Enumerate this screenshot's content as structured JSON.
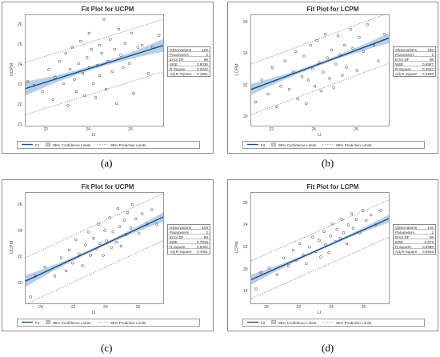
{
  "chart_data": [
    {
      "type": "scatter",
      "panel_caption": "(a)",
      "title": "Fit Plot for UCPM",
      "xlabel": "LI",
      "ylabel": "UCPM",
      "xlim": [
        21,
        27.5
      ],
      "ylim": [
        21,
        26.5
      ],
      "xticks": [
        22,
        24,
        26
      ],
      "yticks": [
        21,
        22,
        23,
        24,
        25,
        26
      ],
      "grid": false,
      "fit": {
        "slope": 0.33,
        "intercept": 15.92
      },
      "ci_half_width": [
        0.35,
        0.1,
        0.32
      ],
      "pi_offset": 1.3,
      "points": [
        [
          21.1,
          23.2
        ],
        [
          21.4,
          23.0
        ],
        [
          21.8,
          22.7
        ],
        [
          22.1,
          23.8
        ],
        [
          22.3,
          22.3
        ],
        [
          22.4,
          23.4
        ],
        [
          22.6,
          24.2
        ],
        [
          22.8,
          23.1
        ],
        [
          22.9,
          24.6
        ],
        [
          23.0,
          22.0
        ],
        [
          23.1,
          23.8
        ],
        [
          23.2,
          24.9
        ],
        [
          23.3,
          23.3
        ],
        [
          23.4,
          22.7
        ],
        [
          23.5,
          24.1
        ],
        [
          23.6,
          25.2
        ],
        [
          23.7,
          23.6
        ],
        [
          23.8,
          22.5
        ],
        [
          23.9,
          24.4
        ],
        [
          24.0,
          23.9
        ],
        [
          24.0,
          25.6
        ],
        [
          24.1,
          24.8
        ],
        [
          24.2,
          23.1
        ],
        [
          24.3,
          22.4
        ],
        [
          24.4,
          24.0
        ],
        [
          24.5,
          25.0
        ],
        [
          24.5,
          23.5
        ],
        [
          24.6,
          24.6
        ],
        [
          24.7,
          26.3
        ],
        [
          24.8,
          22.8
        ],
        [
          24.9,
          24.2
        ],
        [
          25.0,
          25.3
        ],
        [
          25.1,
          23.7
        ],
        [
          25.2,
          24.8
        ],
        [
          25.3,
          22.1
        ],
        [
          25.4,
          25.8
        ],
        [
          25.5,
          24.5
        ],
        [
          25.6,
          23.9
        ],
        [
          25.7,
          25.1
        ],
        [
          25.9,
          24.1
        ],
        [
          26.0,
          25.6
        ],
        [
          26.1,
          22.6
        ],
        [
          26.3,
          24.9
        ],
        [
          26.5,
          25.0
        ],
        [
          26.8,
          23.6
        ],
        [
          27.0,
          24.9
        ],
        [
          27.3,
          25.5
        ]
      ],
      "stats": [
        {
          "label": "Observations",
          "value": "100"
        },
        {
          "label": "Parameters",
          "value": "2"
        },
        {
          "label": "Error DF",
          "value": "98"
        },
        {
          "label": "MSE",
          "value": "0.8036"
        },
        {
          "label": "R-Square",
          "value": "0.2042"
        },
        {
          "label": "Adj R-Square",
          "value": "0.1961"
        }
      ],
      "legend": [
        "Fit",
        "95% Confidence Limits",
        "95% Prediction Limits"
      ]
    },
    {
      "type": "scatter",
      "panel_caption": "(b)",
      "title": "Fit Plot for LCPM",
      "xlabel": "LI",
      "ylabel": "LCPM",
      "xlim": [
        21,
        27.5
      ],
      "ylim": [
        19.5,
        26.5
      ],
      "xticks": [
        22,
        24,
        26
      ],
      "yticks": [
        20,
        22,
        24,
        26
      ],
      "grid": false,
      "fit": {
        "slope": 0.5,
        "intercept": 11.3
      },
      "ci_half_width": [
        0.35,
        0.1,
        0.32
      ],
      "pi_offset": 1.6,
      "points": [
        [
          21.2,
          21.0
        ],
        [
          21.5,
          22.4
        ],
        [
          21.8,
          21.5
        ],
        [
          22.0,
          23.2
        ],
        [
          22.2,
          20.7
        ],
        [
          22.4,
          22.0
        ],
        [
          22.6,
          23.6
        ],
        [
          22.8,
          21.8
        ],
        [
          23.0,
          22.9
        ],
        [
          23.1,
          24.2
        ],
        [
          23.2,
          21.2
        ],
        [
          23.4,
          22.6
        ],
        [
          23.5,
          23.9
        ],
        [
          23.6,
          20.9
        ],
        [
          23.7,
          22.4
        ],
        [
          23.8,
          24.6
        ],
        [
          23.9,
          23.1
        ],
        [
          24.0,
          22.0
        ],
        [
          24.1,
          24.9
        ],
        [
          24.2,
          23.5
        ],
        [
          24.3,
          21.7
        ],
        [
          24.4,
          22.9
        ],
        [
          24.5,
          25.3
        ],
        [
          24.6,
          23.8
        ],
        [
          24.7,
          22.5
        ],
        [
          24.8,
          24.3
        ],
        [
          24.9,
          21.9
        ],
        [
          25.0,
          23.4
        ],
        [
          25.1,
          25.2
        ],
        [
          25.2,
          24.0
        ],
        [
          25.3,
          22.7
        ],
        [
          25.4,
          24.6
        ],
        [
          25.5,
          23.2
        ],
        [
          25.7,
          25.6
        ],
        [
          25.8,
          24.4
        ],
        [
          26.0,
          23.0
        ],
        [
          26.1,
          25.1
        ],
        [
          26.3,
          24.2
        ],
        [
          26.5,
          25.9
        ],
        [
          26.8,
          24.6
        ],
        [
          27.0,
          23.6
        ],
        [
          27.3,
          25.3
        ]
      ],
      "stats": [
        {
          "label": "Observations",
          "value": "100"
        },
        {
          "label": "Parameters",
          "value": "2"
        },
        {
          "label": "Error DF",
          "value": "98"
        },
        {
          "label": "MSE",
          "value": "0.6587"
        },
        {
          "label": "R-Square",
          "value": "0.3623"
        },
        {
          "label": "Adj R-Square",
          "value": "0.3558"
        }
      ],
      "legend": [
        "Fit",
        "95% Confidence Limits",
        "95% Prediction Limits"
      ]
    },
    {
      "type": "scatter",
      "panel_caption": "(c)",
      "title": "Fit Plot for UCPM",
      "xlabel": "LI",
      "ylabel": "UCPM",
      "xlim": [
        19,
        27.5
      ],
      "ylim": [
        18.5,
        27
      ],
      "xticks": [
        20,
        22,
        24,
        26
      ],
      "yticks": [
        20,
        22,
        24,
        26
      ],
      "grid": false,
      "fit": {
        "slope": 0.58,
        "intercept": 9.2
      },
      "ci_half_width": [
        0.45,
        0.1,
        0.35
      ],
      "pi_offset": 1.8,
      "points": [
        [
          19.3,
          19.0
        ],
        [
          19.6,
          20.6
        ],
        [
          20.2,
          21.3
        ],
        [
          20.8,
          20.6
        ],
        [
          21.2,
          22.0
        ],
        [
          21.5,
          21.0
        ],
        [
          21.7,
          22.6
        ],
        [
          21.9,
          21.6
        ],
        [
          22.1,
          23.4
        ],
        [
          22.3,
          22.3
        ],
        [
          22.5,
          21.4
        ],
        [
          22.7,
          23.0
        ],
        [
          22.9,
          24.0
        ],
        [
          23.0,
          22.2
        ],
        [
          23.2,
          23.5
        ],
        [
          23.4,
          22.7
        ],
        [
          23.5,
          24.6
        ],
        [
          23.6,
          23.1
        ],
        [
          23.8,
          22.2
        ],
        [
          23.9,
          24.1
        ],
        [
          24.0,
          23.3
        ],
        [
          24.2,
          25.1
        ],
        [
          24.3,
          22.8
        ],
        [
          24.4,
          24.0
        ],
        [
          24.6,
          23.2
        ],
        [
          24.7,
          25.8
        ],
        [
          24.8,
          24.4
        ],
        [
          24.9,
          22.9
        ],
        [
          25.1,
          24.9
        ],
        [
          25.2,
          23.8
        ],
        [
          25.3,
          25.5
        ],
        [
          25.5,
          24.3
        ],
        [
          25.6,
          26.1
        ],
        [
          25.8,
          25.0
        ],
        [
          26.0,
          23.9
        ],
        [
          26.2,
          25.4
        ],
        [
          26.5,
          24.6
        ],
        [
          26.8,
          25.7
        ],
        [
          27.1,
          24.6
        ]
      ],
      "stats": [
        {
          "label": "Observations",
          "value": "100"
        },
        {
          "label": "Parameters",
          "value": "2"
        },
        {
          "label": "Error DF",
          "value": "98"
        },
        {
          "label": "MSE",
          "value": "0.7818"
        },
        {
          "label": "R-Square",
          "value": "0.5002"
        },
        {
          "label": "Adj R-Square",
          "value": "0.4951"
        }
      ],
      "legend": [
        "Fit",
        "95% Confidence Limits",
        "95% Prediction Limits"
      ]
    },
    {
      "type": "scatter",
      "panel_caption": "(d)",
      "title": "Fit Plot for LCPM",
      "xlabel": "LI",
      "ylabel": "LCPM",
      "xlim": [
        19,
        27.5
      ],
      "ylim": [
        17,
        27
      ],
      "xticks": [
        20,
        22,
        24,
        26
      ],
      "yticks": [
        18,
        20,
        22,
        24,
        26
      ],
      "grid": false,
      "fit": {
        "slope": 0.65,
        "intercept": 6.8
      },
      "ci_half_width": [
        0.45,
        0.1,
        0.35
      ],
      "pi_offset": 1.7,
      "points": [
        [
          19.3,
          18.3
        ],
        [
          19.6,
          19.8
        ],
        [
          20.1,
          20.2
        ],
        [
          20.6,
          19.6
        ],
        [
          21.0,
          21.1
        ],
        [
          21.3,
          20.4
        ],
        [
          21.6,
          21.8
        ],
        [
          21.8,
          20.9
        ],
        [
          22.0,
          22.4
        ],
        [
          22.2,
          21.4
        ],
        [
          22.4,
          20.6
        ],
        [
          22.6,
          22.1
        ],
        [
          22.8,
          23.0
        ],
        [
          23.0,
          21.7
        ],
        [
          23.2,
          22.7
        ],
        [
          23.3,
          21.2
        ],
        [
          23.5,
          23.5
        ],
        [
          23.6,
          22.3
        ],
        [
          23.8,
          21.6
        ],
        [
          23.9,
          23.1
        ],
        [
          24.0,
          24.2
        ],
        [
          24.2,
          22.6
        ],
        [
          24.3,
          23.7
        ],
        [
          24.5,
          22.9
        ],
        [
          24.6,
          24.6
        ],
        [
          24.7,
          23.4
        ],
        [
          24.9,
          22.4
        ],
        [
          25.0,
          24.1
        ],
        [
          25.2,
          25.1
        ],
        [
          25.3,
          23.8
        ],
        [
          25.5,
          24.6
        ],
        [
          25.7,
          23.4
        ],
        [
          25.9,
          25.4
        ],
        [
          26.1,
          24.5
        ],
        [
          26.4,
          25.0
        ],
        [
          26.7,
          24.1
        ],
        [
          27.0,
          25.4
        ]
      ],
      "stats": [
        {
          "label": "Observations",
          "value": "100"
        },
        {
          "label": "Parameters",
          "value": "2"
        },
        {
          "label": "Error DF",
          "value": "98"
        },
        {
          "label": "MSE",
          "value": "0.679"
        },
        {
          "label": "R-Square",
          "value": "0.5598"
        },
        {
          "label": "Adj R-Square",
          "value": "0.5553"
        }
      ],
      "legend": [
        "Fit",
        "95% Confidence Limits",
        "95% Prediction Limits"
      ]
    }
  ]
}
